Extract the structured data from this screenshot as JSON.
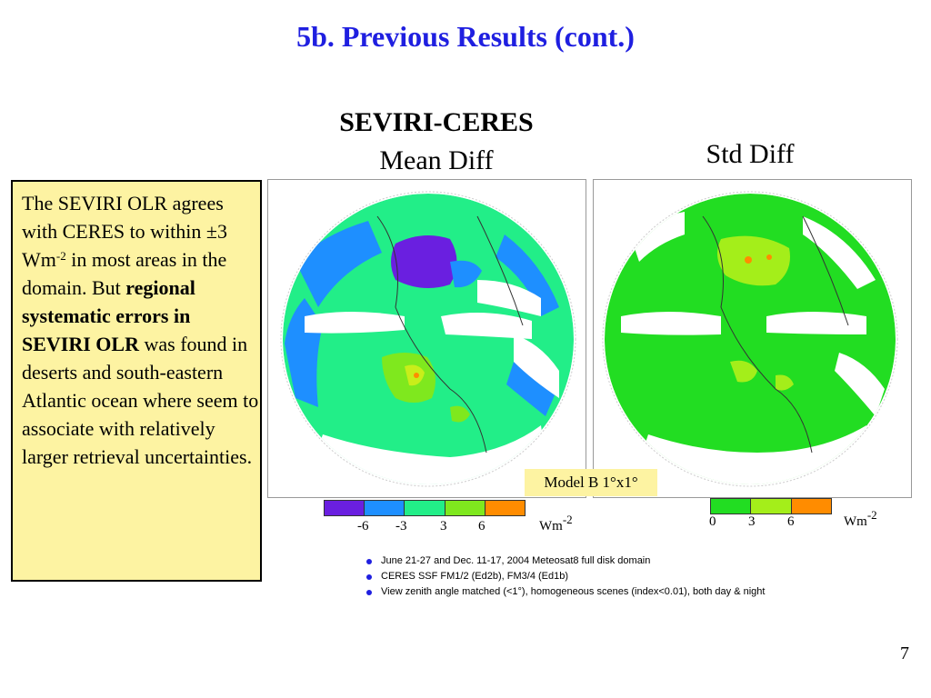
{
  "slide": {
    "title": "5b. Previous Results (cont.)",
    "heading_main": "SEVIRI-CERES",
    "heading_mean": "Mean Diff",
    "heading_std": "Std Diff",
    "page_number": "7"
  },
  "text_box": {
    "p1": "The SEVIRI OLR agrees with CERES to within ±3 Wm",
    "p1_sup": "-2",
    "p2": " in most areas in the domain. But ",
    "bold1": "regional systematic errors in SEVIRI OLR",
    "p3": " was found in deserts and south-eastern Atlantic ocean where seem to associate with relatively larger retrieval uncertainties."
  },
  "model_label": "Model B 1°x1°",
  "mean_colorbar": {
    "colors": [
      "#6a1fe0",
      "#1e8fff",
      "#22ee88",
      "#7fe81e",
      "#ff8c00"
    ],
    "ticks": [
      "-6",
      "-3",
      "3",
      "6"
    ],
    "unit": "Wm",
    "unit_sup": "-2"
  },
  "std_colorbar": {
    "colors": [
      "#22dd22",
      "#a4ee1a",
      "#ff8c00"
    ],
    "ticks": [
      "0",
      "3",
      "6"
    ],
    "unit": "Wm",
    "unit_sup": "-2"
  },
  "notes": [
    "June 21-27 and Dec. 11-17, 2004 Meteosat8 full disk domain",
    "CERES SSF FM1/2 (Ed2b), FM3/4 (Ed1b)",
    "View zenith angle matched (<1°), homogeneous scenes (index<0.01), both day & night"
  ],
  "colors": {
    "title": "#1f1fe0",
    "text_box_bg": "#fdf3a2",
    "bullet": "#1f1fe0"
  }
}
